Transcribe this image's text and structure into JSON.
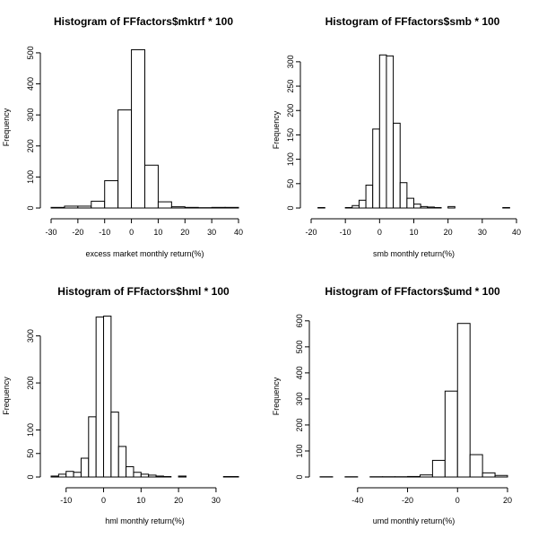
{
  "chart_data": [
    {
      "type": "bar",
      "title": "Histogram of FFfactors$mktrf * 100",
      "xlabel": "excess market monthly return(%)",
      "ylabel": "Frequency",
      "xlim": [
        -30,
        40
      ],
      "ylim": [
        0,
        520
      ],
      "xticks": [
        -30,
        -20,
        -10,
        0,
        10,
        20,
        30,
        40
      ],
      "yticks": [
        0,
        100,
        200,
        300,
        400,
        500
      ],
      "bins": [
        {
          "x0": -30,
          "x1": -25,
          "count": 2
        },
        {
          "x0": -25,
          "x1": -20,
          "count": 6
        },
        {
          "x0": -20,
          "x1": -15,
          "count": 6
        },
        {
          "x0": -15,
          "x1": -10,
          "count": 22
        },
        {
          "x0": -10,
          "x1": -5,
          "count": 88
        },
        {
          "x0": -5,
          "x1": 0,
          "count": 316
        },
        {
          "x0": 0,
          "x1": 5,
          "count": 510
        },
        {
          "x0": 5,
          "x1": 10,
          "count": 138
        },
        {
          "x0": 10,
          "x1": 15,
          "count": 20
        },
        {
          "x0": 15,
          "x1": 20,
          "count": 4
        },
        {
          "x0": 20,
          "x1": 25,
          "count": 2
        },
        {
          "x0": 25,
          "x1": 30,
          "count": 1
        },
        {
          "x0": 30,
          "x1": 35,
          "count": 2
        },
        {
          "x0": 35,
          "x1": 40,
          "count": 2
        }
      ]
    },
    {
      "type": "bar",
      "title": "Histogram of FFfactors$smb * 100",
      "xlabel": "smb monthly return(%)",
      "ylabel": "Frequency",
      "xlim": [
        -20,
        40
      ],
      "ylim": [
        0,
        320
      ],
      "xticks": [
        -20,
        -10,
        0,
        10,
        20,
        30,
        40
      ],
      "yticks": [
        0,
        50,
        100,
        150,
        200,
        250,
        300
      ],
      "bins": [
        {
          "x0": -18,
          "x1": -16,
          "count": 1
        },
        {
          "x0": -16,
          "x1": -14,
          "count": 0
        },
        {
          "x0": -14,
          "x1": -12,
          "count": 0
        },
        {
          "x0": -12,
          "x1": -10,
          "count": 0
        },
        {
          "x0": -10,
          "x1": -8,
          "count": 1
        },
        {
          "x0": -8,
          "x1": -6,
          "count": 5
        },
        {
          "x0": -6,
          "x1": -4,
          "count": 16
        },
        {
          "x0": -4,
          "x1": -2,
          "count": 47
        },
        {
          "x0": -2,
          "x1": 0,
          "count": 162
        },
        {
          "x0": 0,
          "x1": 2,
          "count": 314
        },
        {
          "x0": 2,
          "x1": 4,
          "count": 312
        },
        {
          "x0": 4,
          "x1": 6,
          "count": 174
        },
        {
          "x0": 6,
          "x1": 8,
          "count": 52
        },
        {
          "x0": 8,
          "x1": 10,
          "count": 20
        },
        {
          "x0": 10,
          "x1": 12,
          "count": 8
        },
        {
          "x0": 12,
          "x1": 14,
          "count": 3
        },
        {
          "x0": 14,
          "x1": 16,
          "count": 2
        },
        {
          "x0": 16,
          "x1": 18,
          "count": 1
        },
        {
          "x0": 18,
          "x1": 20,
          "count": 0
        },
        {
          "x0": 20,
          "x1": 22,
          "count": 3
        },
        {
          "x0": 22,
          "x1": 24,
          "count": 0
        },
        {
          "x0": 24,
          "x1": 26,
          "count": 0
        },
        {
          "x0": 26,
          "x1": 28,
          "count": 0
        },
        {
          "x0": 28,
          "x1": 30,
          "count": 0
        },
        {
          "x0": 30,
          "x1": 32,
          "count": 0
        },
        {
          "x0": 32,
          "x1": 34,
          "count": 0
        },
        {
          "x0": 34,
          "x1": 36,
          "count": 0
        },
        {
          "x0": 36,
          "x1": 38,
          "count": 1
        }
      ]
    },
    {
      "type": "bar",
      "title": "Histogram of FFfactors$hml * 100",
      "xlabel": "hml monthly return(%)",
      "ylabel": "Frequency",
      "xlim": [
        -14,
        36
      ],
      "ylim": [
        0,
        345
      ],
      "xticks": [
        -10,
        0,
        10,
        20,
        30
      ],
      "yticks": [
        0,
        50,
        100,
        200,
        300
      ],
      "bins": [
        {
          "x0": -14,
          "x1": -12,
          "count": 2
        },
        {
          "x0": -12,
          "x1": -10,
          "count": 6
        },
        {
          "x0": -10,
          "x1": -8,
          "count": 12
        },
        {
          "x0": -8,
          "x1": -6,
          "count": 10
        },
        {
          "x0": -6,
          "x1": -4,
          "count": 40
        },
        {
          "x0": -4,
          "x1": -2,
          "count": 128
        },
        {
          "x0": -2,
          "x1": 0,
          "count": 340
        },
        {
          "x0": 0,
          "x1": 2,
          "count": 342
        },
        {
          "x0": 2,
          "x1": 4,
          "count": 138
        },
        {
          "x0": 4,
          "x1": 6,
          "count": 65
        },
        {
          "x0": 6,
          "x1": 8,
          "count": 22
        },
        {
          "x0": 8,
          "x1": 10,
          "count": 10
        },
        {
          "x0": 10,
          "x1": 12,
          "count": 6
        },
        {
          "x0": 12,
          "x1": 14,
          "count": 4
        },
        {
          "x0": 14,
          "x1": 16,
          "count": 2
        },
        {
          "x0": 16,
          "x1": 18,
          "count": 1
        },
        {
          "x0": 18,
          "x1": 20,
          "count": 0
        },
        {
          "x0": 20,
          "x1": 22,
          "count": 2
        },
        {
          "x0": 22,
          "x1": 24,
          "count": 0
        },
        {
          "x0": 24,
          "x1": 26,
          "count": 0
        },
        {
          "x0": 26,
          "x1": 28,
          "count": 0
        },
        {
          "x0": 28,
          "x1": 30,
          "count": 0
        },
        {
          "x0": 30,
          "x1": 32,
          "count": 0
        },
        {
          "x0": 32,
          "x1": 34,
          "count": 1
        },
        {
          "x0": 34,
          "x1": 36,
          "count": 1
        }
      ]
    },
    {
      "type": "bar",
      "title": "Histogram of FFfactors$umd * 100",
      "xlabel": "umd monthly return(%)",
      "ylabel": "Frequency",
      "xlim": [
        -55,
        20
      ],
      "ylim": [
        0,
        620
      ],
      "xticks": [
        -40,
        -20,
        0,
        20
      ],
      "yticks": [
        0,
        100,
        200,
        300,
        400,
        500,
        600
      ],
      "bins": [
        {
          "x0": -55,
          "x1": -50,
          "count": 1
        },
        {
          "x0": -50,
          "x1": -45,
          "count": 0
        },
        {
          "x0": -45,
          "x1": -40,
          "count": 1
        },
        {
          "x0": -40,
          "x1": -35,
          "count": 0
        },
        {
          "x0": -35,
          "x1": -30,
          "count": 1
        },
        {
          "x0": -30,
          "x1": -25,
          "count": 1
        },
        {
          "x0": -25,
          "x1": -20,
          "count": 1
        },
        {
          "x0": -20,
          "x1": -15,
          "count": 2
        },
        {
          "x0": -15,
          "x1": -10,
          "count": 8
        },
        {
          "x0": -10,
          "x1": -5,
          "count": 64
        },
        {
          "x0": -5,
          "x1": 0,
          "count": 330
        },
        {
          "x0": 0,
          "x1": 5,
          "count": 590
        },
        {
          "x0": 5,
          "x1": 10,
          "count": 86
        },
        {
          "x0": 10,
          "x1": 15,
          "count": 16
        },
        {
          "x0": 15,
          "x1": 20,
          "count": 6
        }
      ]
    }
  ]
}
